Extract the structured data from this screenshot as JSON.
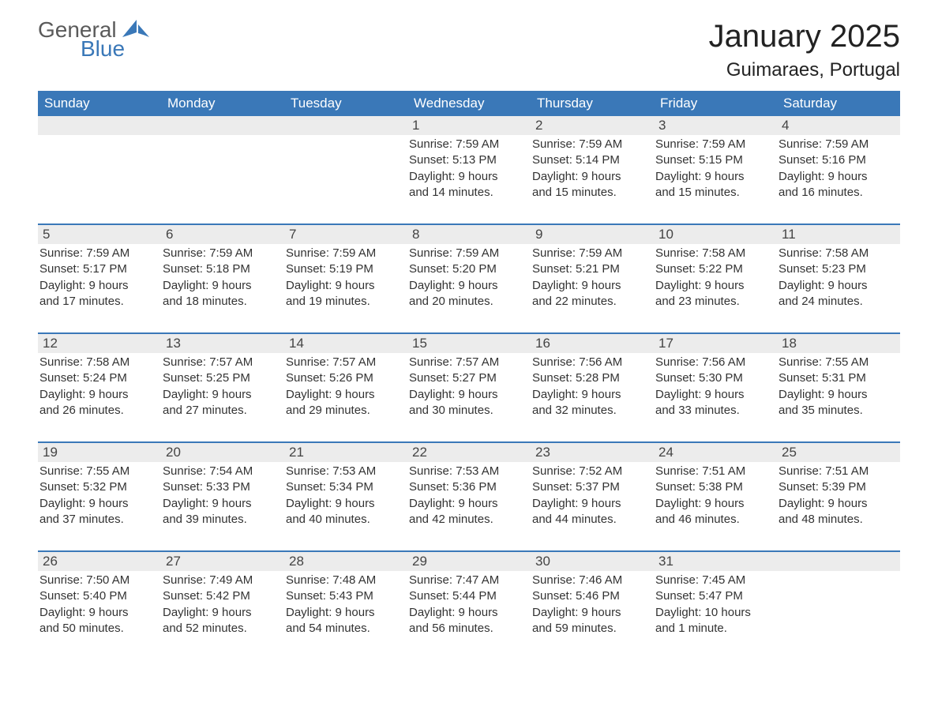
{
  "logo": {
    "general": "General",
    "blue": "Blue"
  },
  "title": "January 2025",
  "location": "Guimaraes, Portugal",
  "colors": {
    "header_bg": "#3a78b8",
    "header_text": "#ffffff",
    "daynum_bg": "#ececec",
    "body_text": "#333333",
    "page_bg": "#ffffff"
  },
  "typography": {
    "title_fontsize": 40,
    "location_fontsize": 24,
    "header_fontsize": 17,
    "cell_fontsize": 15,
    "font_family": "Arial"
  },
  "layout": {
    "columns": 7,
    "rows": 5,
    "week_divider_color": "#3a78b8",
    "week_divider_width": 2
  },
  "day_names": [
    "Sunday",
    "Monday",
    "Tuesday",
    "Wednesday",
    "Thursday",
    "Friday",
    "Saturday"
  ],
  "weeks": [
    [
      null,
      null,
      null,
      {
        "n": "1",
        "sunrise": "Sunrise: 7:59 AM",
        "sunset": "Sunset: 5:13 PM",
        "daylight1": "Daylight: 9 hours",
        "daylight2": "and 14 minutes."
      },
      {
        "n": "2",
        "sunrise": "Sunrise: 7:59 AM",
        "sunset": "Sunset: 5:14 PM",
        "daylight1": "Daylight: 9 hours",
        "daylight2": "and 15 minutes."
      },
      {
        "n": "3",
        "sunrise": "Sunrise: 7:59 AM",
        "sunset": "Sunset: 5:15 PM",
        "daylight1": "Daylight: 9 hours",
        "daylight2": "and 15 minutes."
      },
      {
        "n": "4",
        "sunrise": "Sunrise: 7:59 AM",
        "sunset": "Sunset: 5:16 PM",
        "daylight1": "Daylight: 9 hours",
        "daylight2": "and 16 minutes."
      }
    ],
    [
      {
        "n": "5",
        "sunrise": "Sunrise: 7:59 AM",
        "sunset": "Sunset: 5:17 PM",
        "daylight1": "Daylight: 9 hours",
        "daylight2": "and 17 minutes."
      },
      {
        "n": "6",
        "sunrise": "Sunrise: 7:59 AM",
        "sunset": "Sunset: 5:18 PM",
        "daylight1": "Daylight: 9 hours",
        "daylight2": "and 18 minutes."
      },
      {
        "n": "7",
        "sunrise": "Sunrise: 7:59 AM",
        "sunset": "Sunset: 5:19 PM",
        "daylight1": "Daylight: 9 hours",
        "daylight2": "and 19 minutes."
      },
      {
        "n": "8",
        "sunrise": "Sunrise: 7:59 AM",
        "sunset": "Sunset: 5:20 PM",
        "daylight1": "Daylight: 9 hours",
        "daylight2": "and 20 minutes."
      },
      {
        "n": "9",
        "sunrise": "Sunrise: 7:59 AM",
        "sunset": "Sunset: 5:21 PM",
        "daylight1": "Daylight: 9 hours",
        "daylight2": "and 22 minutes."
      },
      {
        "n": "10",
        "sunrise": "Sunrise: 7:58 AM",
        "sunset": "Sunset: 5:22 PM",
        "daylight1": "Daylight: 9 hours",
        "daylight2": "and 23 minutes."
      },
      {
        "n": "11",
        "sunrise": "Sunrise: 7:58 AM",
        "sunset": "Sunset: 5:23 PM",
        "daylight1": "Daylight: 9 hours",
        "daylight2": "and 24 minutes."
      }
    ],
    [
      {
        "n": "12",
        "sunrise": "Sunrise: 7:58 AM",
        "sunset": "Sunset: 5:24 PM",
        "daylight1": "Daylight: 9 hours",
        "daylight2": "and 26 minutes."
      },
      {
        "n": "13",
        "sunrise": "Sunrise: 7:57 AM",
        "sunset": "Sunset: 5:25 PM",
        "daylight1": "Daylight: 9 hours",
        "daylight2": "and 27 minutes."
      },
      {
        "n": "14",
        "sunrise": "Sunrise: 7:57 AM",
        "sunset": "Sunset: 5:26 PM",
        "daylight1": "Daylight: 9 hours",
        "daylight2": "and 29 minutes."
      },
      {
        "n": "15",
        "sunrise": "Sunrise: 7:57 AM",
        "sunset": "Sunset: 5:27 PM",
        "daylight1": "Daylight: 9 hours",
        "daylight2": "and 30 minutes."
      },
      {
        "n": "16",
        "sunrise": "Sunrise: 7:56 AM",
        "sunset": "Sunset: 5:28 PM",
        "daylight1": "Daylight: 9 hours",
        "daylight2": "and 32 minutes."
      },
      {
        "n": "17",
        "sunrise": "Sunrise: 7:56 AM",
        "sunset": "Sunset: 5:30 PM",
        "daylight1": "Daylight: 9 hours",
        "daylight2": "and 33 minutes."
      },
      {
        "n": "18",
        "sunrise": "Sunrise: 7:55 AM",
        "sunset": "Sunset: 5:31 PM",
        "daylight1": "Daylight: 9 hours",
        "daylight2": "and 35 minutes."
      }
    ],
    [
      {
        "n": "19",
        "sunrise": "Sunrise: 7:55 AM",
        "sunset": "Sunset: 5:32 PM",
        "daylight1": "Daylight: 9 hours",
        "daylight2": "and 37 minutes."
      },
      {
        "n": "20",
        "sunrise": "Sunrise: 7:54 AM",
        "sunset": "Sunset: 5:33 PM",
        "daylight1": "Daylight: 9 hours",
        "daylight2": "and 39 minutes."
      },
      {
        "n": "21",
        "sunrise": "Sunrise: 7:53 AM",
        "sunset": "Sunset: 5:34 PM",
        "daylight1": "Daylight: 9 hours",
        "daylight2": "and 40 minutes."
      },
      {
        "n": "22",
        "sunrise": "Sunrise: 7:53 AM",
        "sunset": "Sunset: 5:36 PM",
        "daylight1": "Daylight: 9 hours",
        "daylight2": "and 42 minutes."
      },
      {
        "n": "23",
        "sunrise": "Sunrise: 7:52 AM",
        "sunset": "Sunset: 5:37 PM",
        "daylight1": "Daylight: 9 hours",
        "daylight2": "and 44 minutes."
      },
      {
        "n": "24",
        "sunrise": "Sunrise: 7:51 AM",
        "sunset": "Sunset: 5:38 PM",
        "daylight1": "Daylight: 9 hours",
        "daylight2": "and 46 minutes."
      },
      {
        "n": "25",
        "sunrise": "Sunrise: 7:51 AM",
        "sunset": "Sunset: 5:39 PM",
        "daylight1": "Daylight: 9 hours",
        "daylight2": "and 48 minutes."
      }
    ],
    [
      {
        "n": "26",
        "sunrise": "Sunrise: 7:50 AM",
        "sunset": "Sunset: 5:40 PM",
        "daylight1": "Daylight: 9 hours",
        "daylight2": "and 50 minutes."
      },
      {
        "n": "27",
        "sunrise": "Sunrise: 7:49 AM",
        "sunset": "Sunset: 5:42 PM",
        "daylight1": "Daylight: 9 hours",
        "daylight2": "and 52 minutes."
      },
      {
        "n": "28",
        "sunrise": "Sunrise: 7:48 AM",
        "sunset": "Sunset: 5:43 PM",
        "daylight1": "Daylight: 9 hours",
        "daylight2": "and 54 minutes."
      },
      {
        "n": "29",
        "sunrise": "Sunrise: 7:47 AM",
        "sunset": "Sunset: 5:44 PM",
        "daylight1": "Daylight: 9 hours",
        "daylight2": "and 56 minutes."
      },
      {
        "n": "30",
        "sunrise": "Sunrise: 7:46 AM",
        "sunset": "Sunset: 5:46 PM",
        "daylight1": "Daylight: 9 hours",
        "daylight2": "and 59 minutes."
      },
      {
        "n": "31",
        "sunrise": "Sunrise: 7:45 AM",
        "sunset": "Sunset: 5:47 PM",
        "daylight1": "Daylight: 10 hours",
        "daylight2": "and 1 minute."
      },
      null
    ]
  ]
}
